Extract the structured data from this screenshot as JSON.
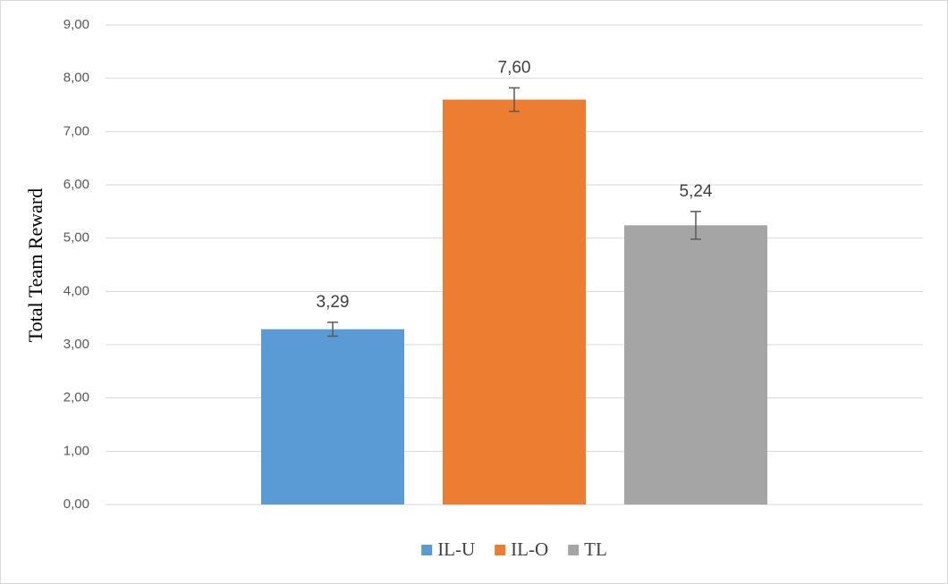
{
  "chart_data": {
    "type": "bar",
    "y_label": "Total Team Reward",
    "categories": [
      null
    ],
    "series": [
      {
        "name": "IL-U",
        "color": "#5b9bd5",
        "values": [
          3.29
        ],
        "value_labels": [
          "3,29"
        ],
        "errors": [
          0.13
        ]
      },
      {
        "name": "IL-O",
        "color": "#ed7d31",
        "values": [
          7.6
        ],
        "value_labels": [
          "7,60"
        ],
        "errors": [
          0.22
        ]
      },
      {
        "name": "TL",
        "color": "#a5a5a5",
        "values": [
          5.24
        ],
        "value_labels": [
          "5,24"
        ],
        "errors": [
          0.26
        ]
      }
    ],
    "ylim": [
      0,
      9
    ],
    "yticks": [
      {
        "value": 0,
        "label": "0,00"
      },
      {
        "value": 1,
        "label": "1,00"
      },
      {
        "value": 2,
        "label": "2,00"
      },
      {
        "value": 3,
        "label": "3,00"
      },
      {
        "value": 4,
        "label": "4,00"
      },
      {
        "value": 5,
        "label": "5,00"
      },
      {
        "value": 6,
        "label": "6,00"
      },
      {
        "value": 7,
        "label": "7,00"
      },
      {
        "value": 8,
        "label": "8,00"
      },
      {
        "value": 9,
        "label": "9,00"
      }
    ],
    "grid": true,
    "legend": "bottom"
  }
}
